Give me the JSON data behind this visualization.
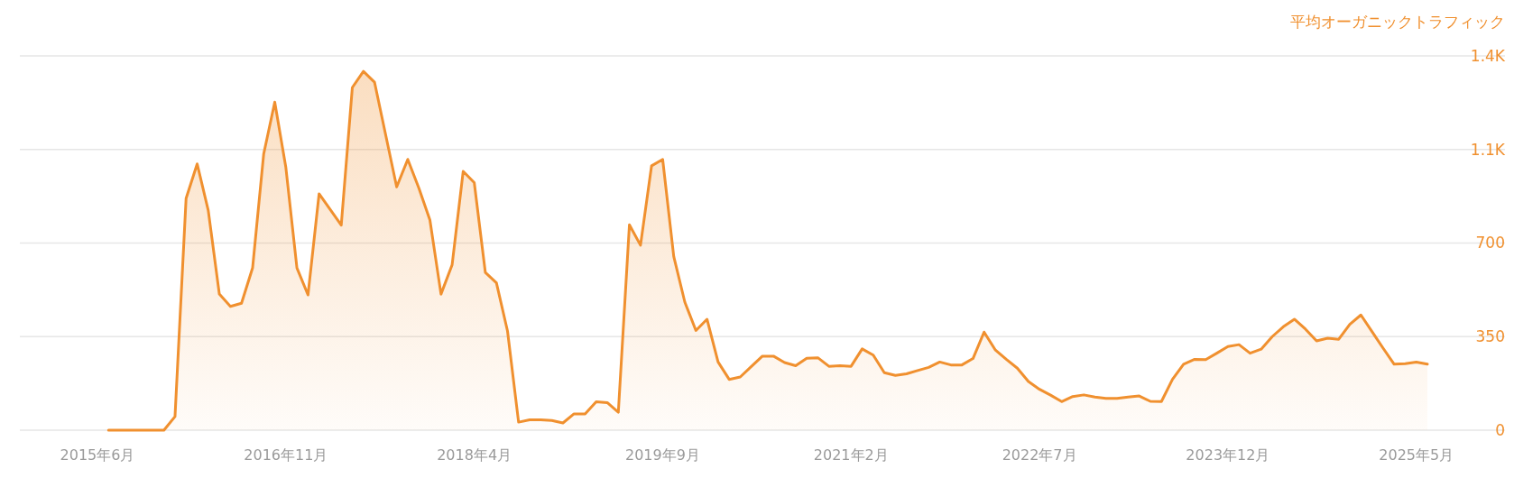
{
  "chart_data": {
    "type": "area",
    "title": "平均オーガニックトラフィック",
    "x": [
      "2015-07",
      "2015-08",
      "2015-09",
      "2015-10",
      "2015-11",
      "2015-12",
      "2016-01",
      "2016-02",
      "2016-03",
      "2016-04",
      "2016-05",
      "2016-06",
      "2016-07",
      "2016-08",
      "2016-09",
      "2016-10",
      "2016-11",
      "2016-12",
      "2017-01",
      "2017-02",
      "2017-04",
      "2017-05",
      "2017-06",
      "2017-07",
      "2017-09",
      "2017-10",
      "2017-11",
      "2017-12",
      "2018-01",
      "2018-02",
      "2018-03",
      "2018-04",
      "2018-05",
      "2018-06",
      "2018-07",
      "2018-08",
      "2018-09",
      "2018-10",
      "2018-11",
      "2018-12",
      "2019-01",
      "2019-02",
      "2019-03",
      "2019-04",
      "2019-05",
      "2019-06",
      "2019-07",
      "2019-08",
      "2019-09",
      "2019-10",
      "2019-11",
      "2019-12",
      "2020-01",
      "2020-02",
      "2020-03",
      "2020-04",
      "2020-05",
      "2020-06",
      "2020-07",
      "2020-08",
      "2020-09",
      "2020-10",
      "2020-11",
      "2020-12",
      "2021-01",
      "2021-02",
      "2021-03",
      "2021-04",
      "2021-05",
      "2021-06",
      "2021-07",
      "2021-08",
      "2021-09",
      "2021-10",
      "2021-11",
      "2021-12",
      "2022-01",
      "2022-02",
      "2022-03",
      "2022-04",
      "2022-05",
      "2022-06",
      "2022-07",
      "2022-08",
      "2022-09",
      "2022-10",
      "2022-11",
      "2022-12",
      "2023-01",
      "2023-02",
      "2023-03",
      "2023-04",
      "2023-05",
      "2023-06",
      "2023-07",
      "2023-08",
      "2023-09",
      "2023-10",
      "2023-11",
      "2023-12",
      "2024-01",
      "2024-02",
      "2024-03",
      "2024-04",
      "2024-05",
      "2024-06",
      "2024-07",
      "2024-08",
      "2024-09",
      "2024-10",
      "2024-11",
      "2024-12",
      "2025-01",
      "2025-02",
      "2025-03",
      "2025-04",
      "2025-05",
      "2025-06"
    ],
    "series": [
      {
        "color": "#f0902f",
        "values": [
          0,
          0,
          0,
          0,
          0,
          0,
          51,
          867,
          996,
          822,
          509,
          463,
          475,
          607,
          1033,
          1227,
          983,
          607,
          506,
          884,
          767,
          1282,
          1342,
          1302,
          910,
          1013,
          906,
          786,
          509,
          618,
          968,
          926,
          590,
          551,
          371,
          30,
          39,
          39,
          36,
          27,
          61,
          61,
          106,
          103,
          67,
          768,
          692,
          989,
          1013,
          650,
          479,
          373,
          415,
          255,
          190,
          199,
          238,
          277,
          277,
          253,
          241,
          269,
          271,
          239,
          241,
          239,
          304,
          281,
          215,
          205,
          211,
          223,
          235,
          255,
          244,
          244,
          268,
          367,
          301,
          265,
          232,
          182,
          153,
          131,
          107,
          126,
          132,
          124,
          119,
          119,
          124,
          128,
          108,
          107,
          190,
          247,
          265,
          264,
          288,
          313,
          320,
          288,
          303,
          350,
          387,
          415,
          378,
          334,
          344,
          340,
          396,
          431,
          369,
          307,
          247,
          249,
          255,
          247
        ]
      }
    ],
    "xlim": [
      "2014-11",
      "2026-01"
    ],
    "xticks": [
      {
        "value": "2015-06",
        "label": "2015年6月"
      },
      {
        "value": "2016-11",
        "label": "2016年11月"
      },
      {
        "value": "2018-04",
        "label": "2018年4月"
      },
      {
        "value": "2019-09",
        "label": "2019年9月"
      },
      {
        "value": "2021-02",
        "label": "2021年2月"
      },
      {
        "value": "2022-07",
        "label": "2022年7月"
      },
      {
        "value": "2023-12",
        "label": "2023年12月"
      },
      {
        "value": "2025-05",
        "label": "2025年5月"
      }
    ],
    "ylim": [
      0,
      1400
    ],
    "yticks": [
      0,
      350,
      700,
      {
        "value": 1050,
        "label": "1.1K"
      },
      {
        "value": 1400,
        "label": "1.4K"
      }
    ],
    "grid": "y"
  }
}
